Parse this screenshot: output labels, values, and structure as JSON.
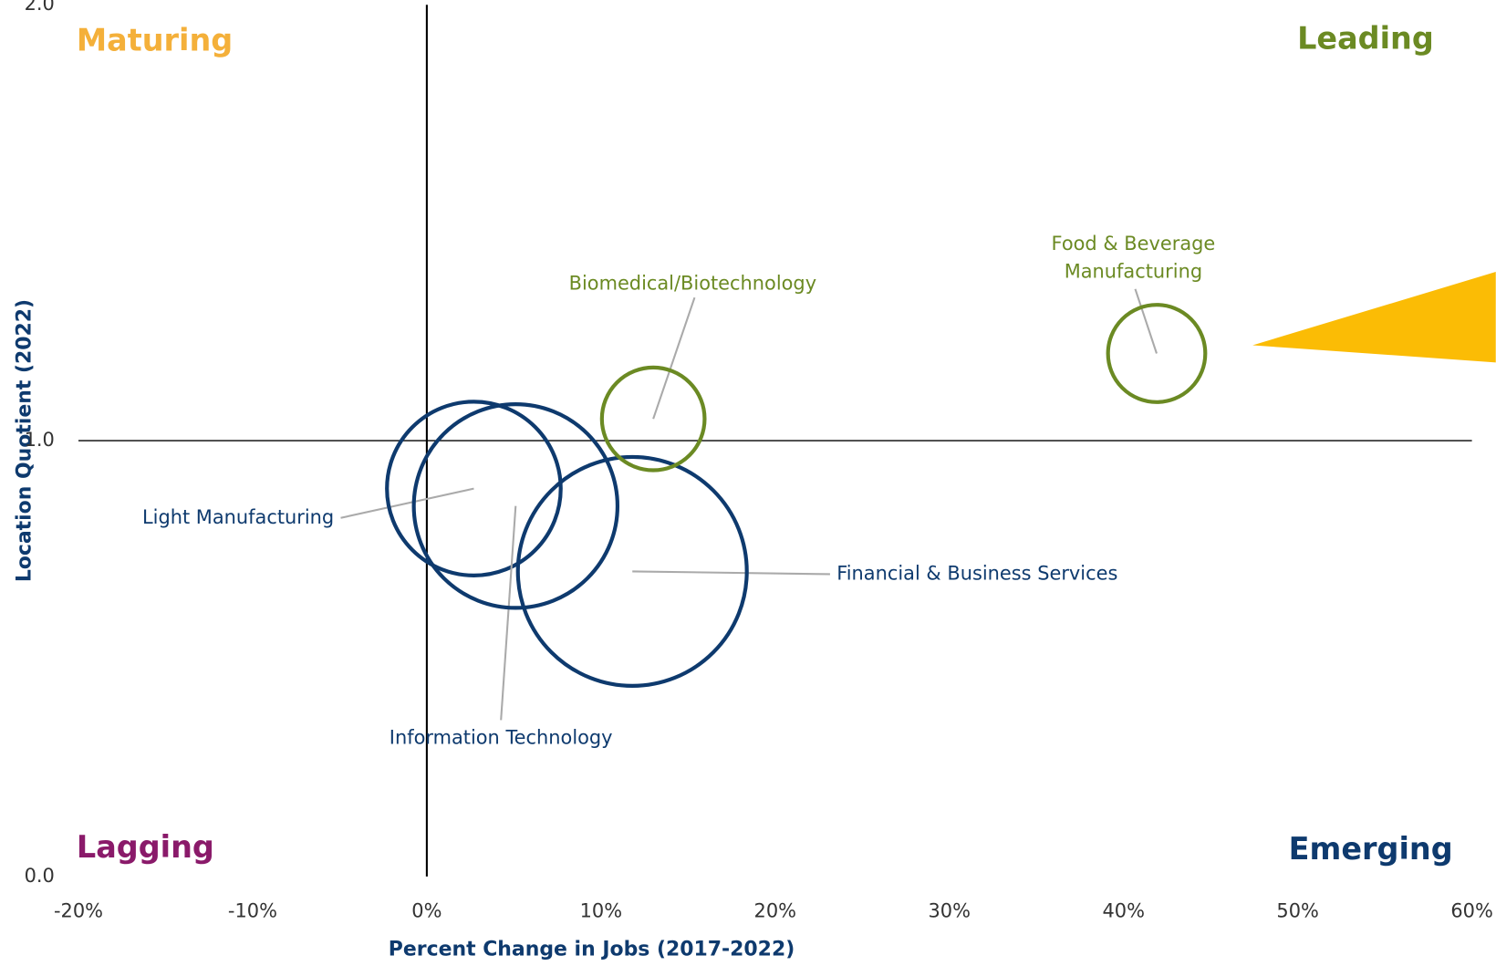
{
  "chart_data": {
    "type": "bubble",
    "x_label": "Percent Change in Jobs (2017-2022)",
    "y_label": "Location Quotient (2022)",
    "quadrant_labels": {
      "top_left": "Maturing",
      "top_right": "Leading",
      "bottom_left": "Lagging",
      "bottom_right": "Emerging"
    },
    "quadrant_colors": {
      "top_left": "#f4b03a",
      "top_right": "#6b8a23",
      "bottom_left": "#8a1a6a",
      "bottom_right": "#0e3a6e"
    },
    "xlim": [
      -20,
      60
    ],
    "ylim": [
      0,
      2
    ],
    "xticks": [
      {
        "value": -20,
        "label": "-20%"
      },
      {
        "value": -10,
        "label": "-10%"
      },
      {
        "value": 0,
        "label": "0%"
      },
      {
        "value": 10,
        "label": "10%"
      },
      {
        "value": 20,
        "label": "20%"
      },
      {
        "value": 30,
        "label": "30%"
      },
      {
        "value": 40,
        "label": "40%"
      },
      {
        "value": 50,
        "label": "50%"
      },
      {
        "value": 60,
        "label": "60%"
      }
    ],
    "yticks": [
      {
        "value": 0,
        "label": "0.0"
      },
      {
        "value": 1,
        "label": "1.0"
      },
      {
        "value": 2,
        "label": "2.0"
      }
    ],
    "points": [
      {
        "name": "Light Manufacturing",
        "x": 2.7,
        "y": 0.89,
        "size": 8300,
        "color": "#0e3a6e"
      },
      {
        "name": "Information Technology",
        "x": 5.1,
        "y": 0.85,
        "size": 11400,
        "color": "#0e3a6e"
      },
      {
        "name": "Financial & Business Services",
        "x": 11.8,
        "y": 0.7,
        "size": 14400,
        "color": "#0e3a6e"
      },
      {
        "name": "Biomedical/Biotechnology",
        "x": 13.0,
        "y": 1.05,
        "size": 2900,
        "color": "#6b8a23"
      },
      {
        "name": "Food & Beverage Manufacturing",
        "x": 41.9,
        "y": 1.2,
        "size": 2600,
        "color": "#6b8a23"
      }
    ]
  }
}
